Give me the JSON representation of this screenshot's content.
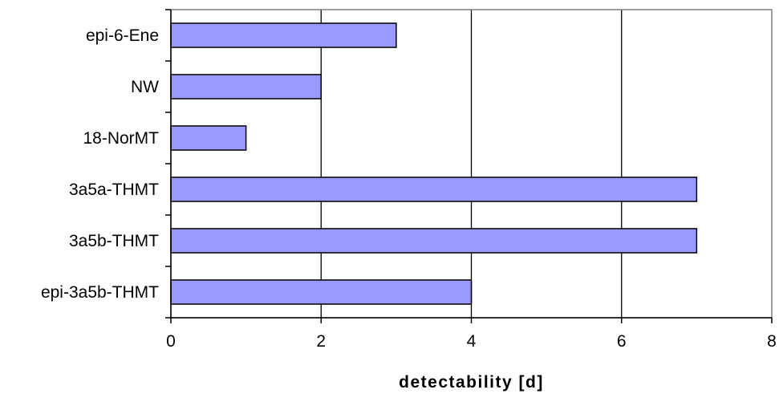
{
  "chart_data": {
    "type": "bar",
    "orientation": "horizontal",
    "title": "",
    "xlabel": "detectability [d]",
    "ylabel": "",
    "categories": [
      "epi-6-Ene",
      "NW",
      "18-NorMT",
      "3a5a-THMT",
      "3a5b-THMT",
      "epi-3a5b-THMT"
    ],
    "values": [
      3,
      2,
      1,
      7,
      7,
      4
    ],
    "xlim": [
      0,
      8
    ],
    "xticks": [
      0,
      2,
      4,
      6,
      8
    ],
    "grid": "vertical",
    "legend": "none",
    "colors": {
      "bar_fill": "#9999ff",
      "bar_stroke": "#000000",
      "grid": "#000000",
      "background": "#ffffff"
    }
  }
}
